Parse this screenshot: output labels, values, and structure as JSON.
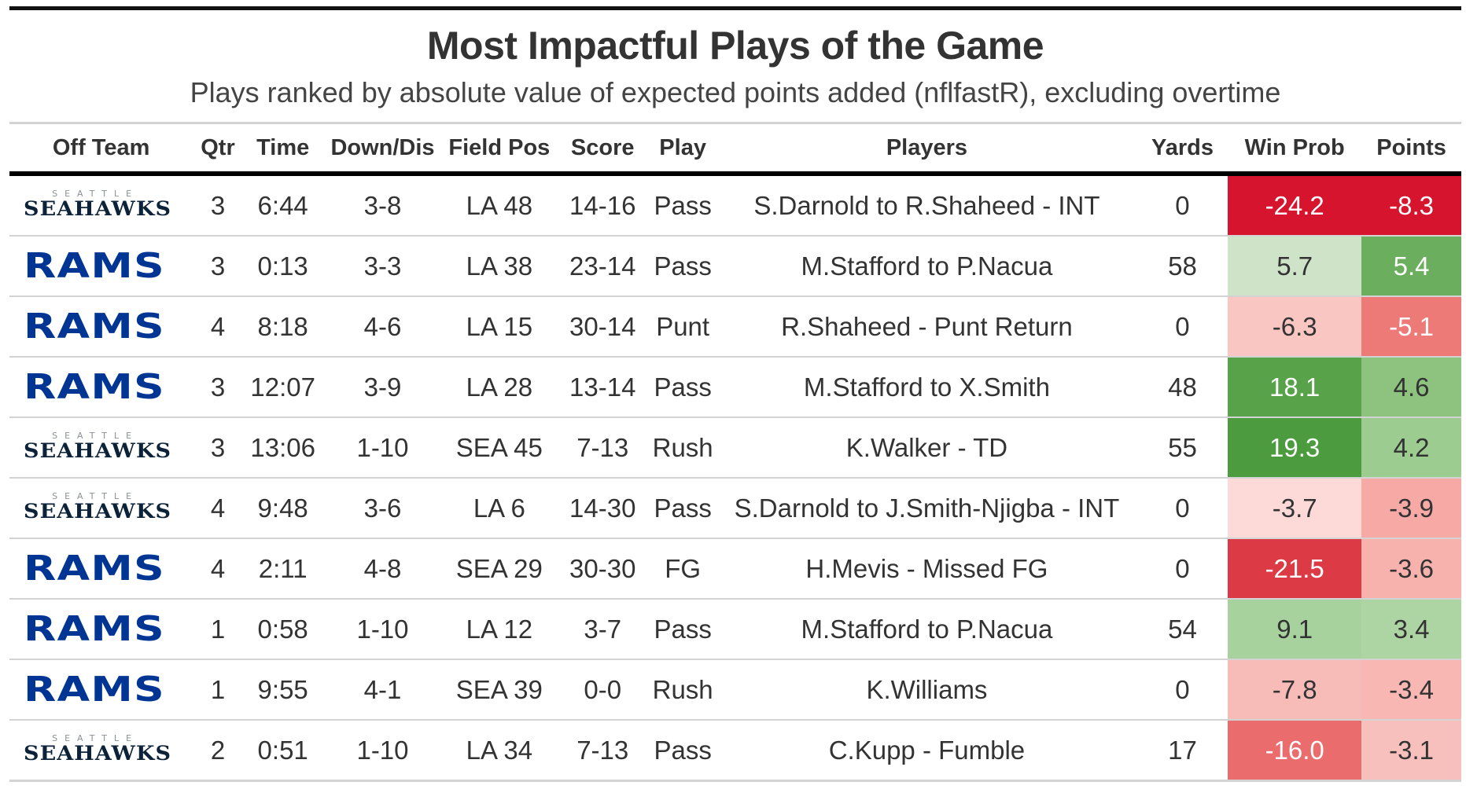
{
  "title": "Most Impactful Plays of the Game",
  "subtitle": "Plays ranked by absolute value of expected points added (nflfastR), excluding overtime",
  "columns": {
    "off_team": "Off Team",
    "qtr": "Qtr",
    "time": "Time",
    "down_dis": "Down/Dis",
    "field_pos": "Field Pos",
    "score": "Score",
    "play": "Play",
    "players": "Players",
    "yards": "Yards",
    "win_prob": "Win Prob",
    "points": "Points"
  },
  "logos": {
    "rams": {
      "text": "RAMS",
      "color": "#003594"
    },
    "seahawks": {
      "top": "SEATTLE",
      "text": "SEAHAWKS",
      "color": "#0b2238"
    }
  },
  "rows": [
    {
      "team": "seahawks",
      "qtr": "3",
      "time": "6:44",
      "down_dis": "3-8",
      "field_pos": "LA 48",
      "score": "14-16",
      "play": "Pass",
      "players": "S.Darnold to R.Shaheed - INT",
      "yards": "0",
      "win_prob": "-24.2",
      "points": "-8.3",
      "win_prob_color": "#d7142e",
      "points_color": "#d7142e",
      "win_prob_text_color": "#ffffff",
      "points_text_color": "#ffffff"
    },
    {
      "team": "rams",
      "qtr": "3",
      "time": "0:13",
      "down_dis": "3-3",
      "field_pos": "LA 38",
      "score": "23-14",
      "play": "Pass",
      "players": "M.Stafford to P.Nacua",
      "yards": "58",
      "win_prob": "5.7",
      "points": "5.4",
      "win_prob_color": "#cfe3c8",
      "points_color": "#6bae5e",
      "win_prob_text_color": "#333333",
      "points_text_color": "#ffffff"
    },
    {
      "team": "rams",
      "qtr": "4",
      "time": "8:18",
      "down_dis": "4-6",
      "field_pos": "LA 15",
      "score": "30-14",
      "play": "Punt",
      "players": "R.Shaheed - Punt Return",
      "yards": "0",
      "win_prob": "-6.3",
      "points": "-5.1",
      "win_prob_color": "#f9c6c2",
      "points_color": "#ee7a78",
      "win_prob_text_color": "#333333",
      "points_text_color": "#ffffff"
    },
    {
      "team": "rams",
      "qtr": "3",
      "time": "12:07",
      "down_dis": "3-9",
      "field_pos": "LA 28",
      "score": "13-14",
      "play": "Pass",
      "players": "M.Stafford to X.Smith",
      "yards": "48",
      "win_prob": "18.1",
      "points": "4.6",
      "win_prob_color": "#58a34a",
      "points_color": "#8dc27f",
      "win_prob_text_color": "#ffffff",
      "points_text_color": "#333333"
    },
    {
      "team": "seahawks",
      "qtr": "3",
      "time": "13:06",
      "down_dis": "1-10",
      "field_pos": "SEA 45",
      "score": "7-13",
      "play": "Rush",
      "players": "K.Walker - TD",
      "yards": "55",
      "win_prob": "19.3",
      "points": "4.2",
      "win_prob_color": "#4c9c3f",
      "points_color": "#9ccc90",
      "win_prob_text_color": "#ffffff",
      "points_text_color": "#333333"
    },
    {
      "team": "seahawks",
      "qtr": "4",
      "time": "9:48",
      "down_dis": "3-6",
      "field_pos": "LA 6",
      "score": "14-30",
      "play": "Pass",
      "players": "S.Darnold to J.Smith-Njigba - INT",
      "yards": "0",
      "win_prob": "-3.7",
      "points": "-3.9",
      "win_prob_color": "#fddad7",
      "points_color": "#f6a9a5",
      "win_prob_text_color": "#333333",
      "points_text_color": "#333333"
    },
    {
      "team": "rams",
      "qtr": "4",
      "time": "2:11",
      "down_dis": "4-8",
      "field_pos": "SEA 29",
      "score": "30-30",
      "play": "FG",
      "players": "H.Mevis - Missed FG",
      "yards": "0",
      "win_prob": "-21.5",
      "points": "-3.6",
      "win_prob_color": "#dc3a44",
      "points_color": "#f7b2ae",
      "win_prob_text_color": "#ffffff",
      "points_text_color": "#333333"
    },
    {
      "team": "rams",
      "qtr": "1",
      "time": "0:58",
      "down_dis": "1-10",
      "field_pos": "LA 12",
      "score": "3-7",
      "play": "Pass",
      "players": "M.Stafford to P.Nacua",
      "yards": "54",
      "win_prob": "9.1",
      "points": "3.4",
      "win_prob_color": "#a8d29d",
      "points_color": "#add4a3",
      "win_prob_text_color": "#333333",
      "points_text_color": "#333333"
    },
    {
      "team": "rams",
      "qtr": "1",
      "time": "9:55",
      "down_dis": "4-1",
      "field_pos": "SEA 39",
      "score": "0-0",
      "play": "Rush",
      "players": "K.Williams",
      "yards": "0",
      "win_prob": "-7.8",
      "points": "-3.4",
      "win_prob_color": "#f8bcb8",
      "points_color": "#f8b7b3",
      "win_prob_text_color": "#333333",
      "points_text_color": "#333333"
    },
    {
      "team": "seahawks",
      "qtr": "2",
      "time": "0:51",
      "down_dis": "1-10",
      "field_pos": "LA 34",
      "score": "7-13",
      "play": "Pass",
      "players": "C.Kupp - Fumble",
      "yards": "17",
      "win_prob": "-16.0",
      "points": "-3.1",
      "win_prob_color": "#ea6c6d",
      "points_color": "#f8c0bc",
      "win_prob_text_color": "#ffffff",
      "points_text_color": "#333333"
    }
  ]
}
